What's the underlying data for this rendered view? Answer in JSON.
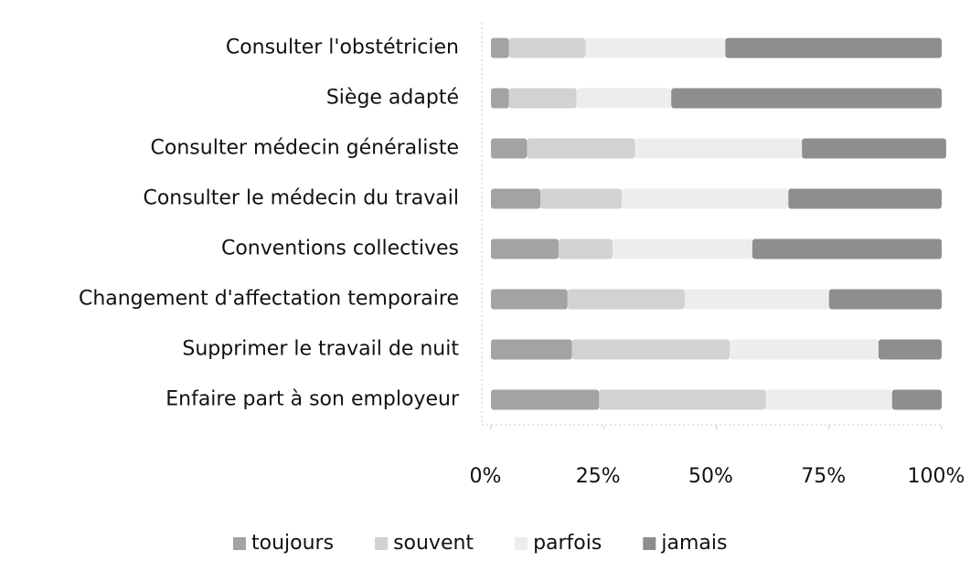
{
  "chart_data": {
    "type": "stacked_bar_horizontal",
    "categories": [
      "Consulter l'obstétricien",
      "Siège adapté",
      "Consulter médecin généraliste",
      "Consulter le médecin du travail",
      "Conventions collectives",
      "Changement d'affectation temporaire",
      "Supprimer le travail de nuit",
      "Enfaire part à son employeur"
    ],
    "series": [
      {
        "name": "toujours",
        "color": "#a3a3a3",
        "values": [
          4,
          4,
          8,
          11,
          15,
          17,
          18,
          24
        ]
      },
      {
        "name": "souvent",
        "color": "#d2d2d2",
        "values": [
          17,
          15,
          24,
          18,
          12,
          26,
          35,
          37
        ]
      },
      {
        "name": "parfois",
        "color": "#ededed",
        "values": [
          31,
          21,
          37,
          37,
          31,
          32,
          33,
          28
        ]
      },
      {
        "name": "jamais",
        "color": "#8e8e8e",
        "values": [
          48,
          60,
          32,
          34,
          42,
          25,
          14,
          11
        ]
      }
    ],
    "xlim": [
      0,
      100
    ],
    "xticks": [
      {
        "value": 0,
        "label": "0%"
      },
      {
        "value": 25,
        "label": "25%"
      },
      {
        "value": 50,
        "label": "50%"
      },
      {
        "value": 75,
        "label": "75%"
      },
      {
        "value": 100,
        "label": "100%"
      }
    ],
    "legend": "bottom"
  }
}
